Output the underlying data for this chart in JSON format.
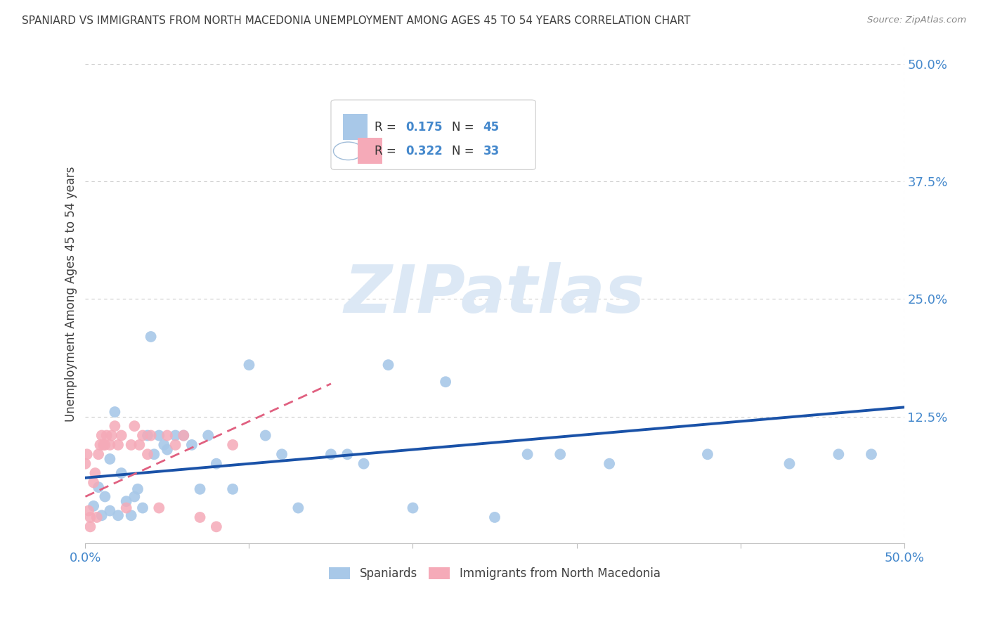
{
  "title": "SPANIARD VS IMMIGRANTS FROM NORTH MACEDONIA UNEMPLOYMENT AMONG AGES 45 TO 54 YEARS CORRELATION CHART",
  "source": "Source: ZipAtlas.com",
  "ylabel": "Unemployment Among Ages 45 to 54 years",
  "legend_r1": "R = ",
  "legend_v1": "0.175",
  "legend_n1_label": "N = ",
  "legend_n1": "45",
  "legend_r2": "R = ",
  "legend_v2": "0.322",
  "legend_n2_label": "N = ",
  "legend_n2": "33",
  "legend_label1": "Spaniards",
  "legend_label2": "Immigrants from North Macedonia",
  "watermark": "ZIPatlas",
  "xlim": [
    0.0,
    0.5
  ],
  "ylim": [
    -0.01,
    0.52
  ],
  "blue_scatter_x": [
    0.005,
    0.008,
    0.01,
    0.012,
    0.015,
    0.015,
    0.018,
    0.02,
    0.022,
    0.025,
    0.028,
    0.03,
    0.032,
    0.035,
    0.038,
    0.04,
    0.042,
    0.045,
    0.048,
    0.05,
    0.055,
    0.06,
    0.065,
    0.07,
    0.075,
    0.08,
    0.09,
    0.1,
    0.11,
    0.12,
    0.13,
    0.15,
    0.16,
    0.17,
    0.185,
    0.2,
    0.22,
    0.25,
    0.27,
    0.29,
    0.32,
    0.38,
    0.43,
    0.46,
    0.48
  ],
  "blue_scatter_y": [
    0.03,
    0.05,
    0.02,
    0.04,
    0.025,
    0.08,
    0.13,
    0.02,
    0.065,
    0.035,
    0.02,
    0.04,
    0.048,
    0.028,
    0.105,
    0.21,
    0.085,
    0.105,
    0.095,
    0.09,
    0.105,
    0.105,
    0.095,
    0.048,
    0.105,
    0.075,
    0.048,
    0.18,
    0.105,
    0.085,
    0.028,
    0.085,
    0.085,
    0.075,
    0.18,
    0.028,
    0.162,
    0.018,
    0.085,
    0.085,
    0.075,
    0.085,
    0.075,
    0.085,
    0.085
  ],
  "pink_scatter_x": [
    0.0,
    0.001,
    0.002,
    0.003,
    0.003,
    0.005,
    0.006,
    0.007,
    0.008,
    0.009,
    0.01,
    0.011,
    0.012,
    0.013,
    0.015,
    0.016,
    0.018,
    0.02,
    0.022,
    0.025,
    0.028,
    0.03,
    0.033,
    0.035,
    0.038,
    0.04,
    0.045,
    0.05,
    0.055,
    0.06,
    0.07,
    0.08,
    0.09
  ],
  "pink_scatter_y": [
    0.075,
    0.085,
    0.025,
    0.008,
    0.018,
    0.055,
    0.065,
    0.018,
    0.085,
    0.095,
    0.105,
    0.095,
    0.095,
    0.105,
    0.095,
    0.105,
    0.115,
    0.095,
    0.105,
    0.028,
    0.095,
    0.115,
    0.095,
    0.105,
    0.085,
    0.105,
    0.028,
    0.105,
    0.095,
    0.105,
    0.018,
    0.008,
    0.095
  ],
  "blue_line_x": [
    0.0,
    0.5
  ],
  "blue_line_y": [
    0.06,
    0.135
  ],
  "pink_line_x": [
    0.0,
    0.15
  ],
  "pink_line_y": [
    0.04,
    0.16
  ],
  "blue_color": "#a8c8e8",
  "pink_color": "#f5aab8",
  "blue_scatter_edge": "#a8c8e8",
  "pink_scatter_edge": "#f5aab8",
  "blue_line_color": "#1a52a8",
  "pink_line_color": "#e06080",
  "title_color": "#404040",
  "axis_color": "#4488cc",
  "source_color": "#888888",
  "background_color": "#ffffff",
  "grid_color": "#cccccc",
  "watermark_color": "#dce8f5",
  "marker_size": 130
}
